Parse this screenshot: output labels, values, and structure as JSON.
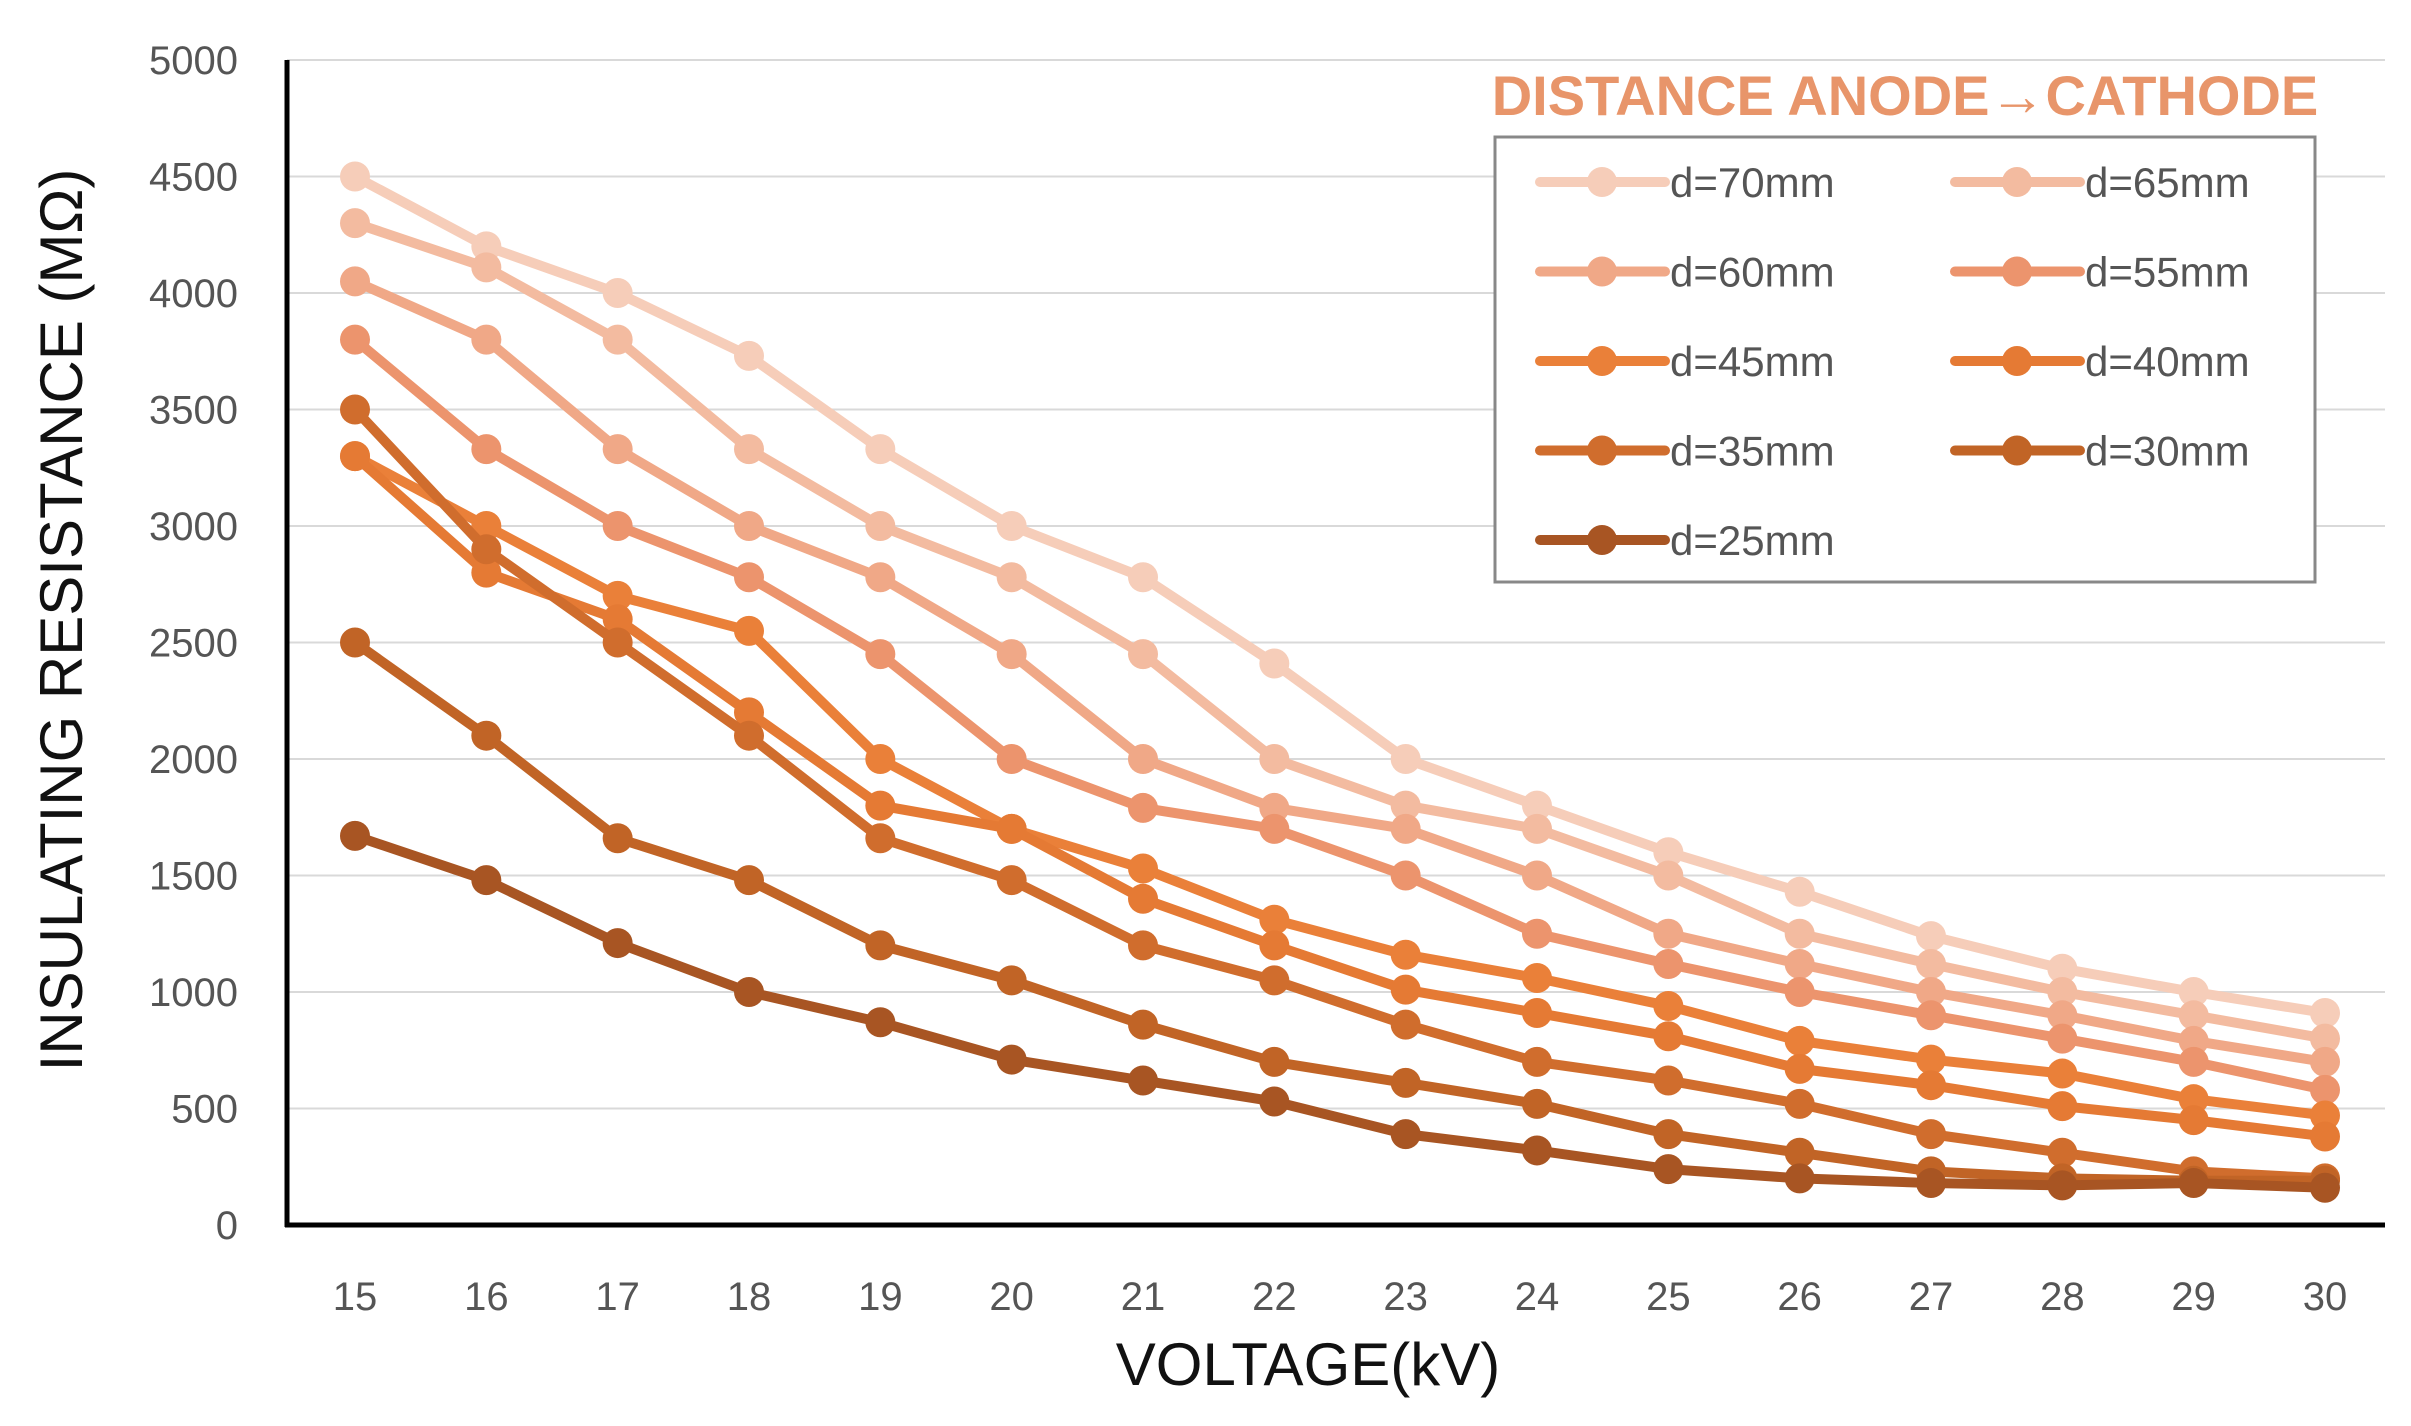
{
  "chart_data": {
    "type": "line",
    "title": "",
    "xlabel": "VOLTAGE(kV)",
    "ylabel": "INSULATING RESISTANCE (MΩ)",
    "x": [
      15,
      16,
      17,
      18,
      19,
      20,
      21,
      22,
      23,
      24,
      25,
      26,
      27,
      28,
      29,
      30
    ],
    "x_tick_labels": [
      "15",
      "16",
      "17",
      "18",
      "19",
      "20",
      "21",
      "22",
      "23",
      "24",
      "25",
      "26",
      "27",
      "28",
      "29",
      "30"
    ],
    "ylim": [
      0,
      5000
    ],
    "y_ticks": [
      0,
      500,
      1000,
      1500,
      2000,
      2500,
      3000,
      3500,
      4000,
      4500,
      5000
    ],
    "y_tick_labels": [
      "0",
      "500",
      "1000",
      "1500",
      "2000",
      "2500",
      "3000",
      "3500",
      "4000",
      "4500",
      "5000"
    ],
    "grid": true,
    "legend": {
      "title": "DISTANCE ANODE→CATHODE",
      "title_color": "#e8956a",
      "placement": "top-right",
      "columns": 2
    },
    "series": [
      {
        "name": "d=70mm",
        "color": "#f6cdb9",
        "values": [
          4500,
          4200,
          4000,
          3730,
          3330,
          3000,
          2780,
          2410,
          2000,
          1800,
          1600,
          1430,
          1240,
          1100,
          1000,
          910
        ]
      },
      {
        "name": "d=65mm",
        "color": "#f3bba0",
        "values": [
          4300,
          4110,
          3800,
          3330,
          3000,
          2780,
          2450,
          2000,
          1800,
          1700,
          1500,
          1250,
          1120,
          1000,
          900,
          800
        ]
      },
      {
        "name": "d=60mm",
        "color": "#f0a887",
        "values": [
          4050,
          3800,
          3330,
          3000,
          2780,
          2450,
          2000,
          1790,
          1700,
          1500,
          1250,
          1120,
          1000,
          900,
          790,
          700
        ]
      },
      {
        "name": "d=55mm",
        "color": "#ec946d",
        "values": [
          3800,
          3330,
          3000,
          2780,
          2450,
          2000,
          1790,
          1700,
          1500,
          1250,
          1120,
          1000,
          900,
          800,
          700,
          580
        ]
      },
      {
        "name": "d=45mm",
        "color": "#ea8039",
        "values": [
          3300,
          3000,
          2700,
          2550,
          2000,
          1700,
          1530,
          1310,
          1160,
          1060,
          940,
          790,
          710,
          650,
          540,
          470
        ]
      },
      {
        "name": "d=40mm",
        "color": "#e57a34",
        "values": [
          3300,
          2800,
          2600,
          2200,
          1800,
          1700,
          1400,
          1200,
          1010,
          910,
          810,
          670,
          600,
          510,
          450,
          380
        ]
      },
      {
        "name": "d=35mm",
        "color": "#d06d2d",
        "values": [
          3500,
          2900,
          2500,
          2100,
          1660,
          1480,
          1200,
          1050,
          860,
          700,
          620,
          520,
          390,
          310,
          230,
          200
        ]
      },
      {
        "name": "d=30mm",
        "color": "#c16426",
        "values": [
          2500,
          2100,
          1660,
          1480,
          1200,
          1050,
          860,
          700,
          610,
          520,
          390,
          310,
          230,
          200,
          190,
          190
        ]
      },
      {
        "name": "d=25mm",
        "color": "#a85523",
        "values": [
          1670,
          1480,
          1210,
          1000,
          870,
          710,
          620,
          530,
          390,
          320,
          240,
          200,
          180,
          170,
          180,
          160
        ]
      }
    ]
  }
}
